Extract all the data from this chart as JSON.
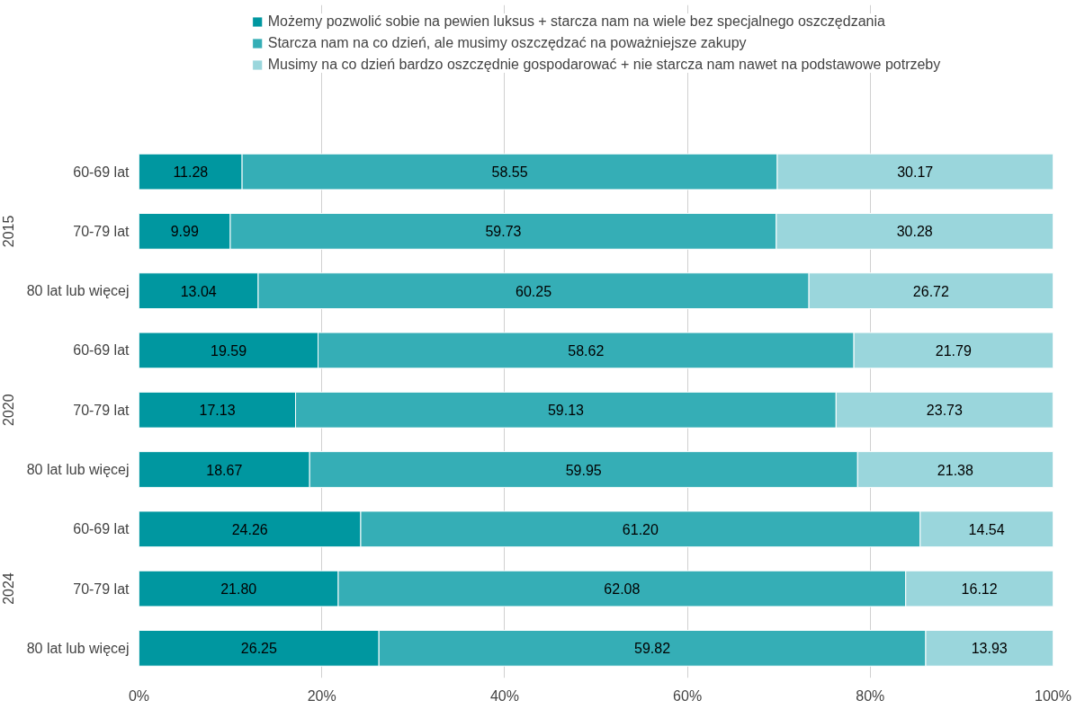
{
  "chart_data": {
    "type": "bar",
    "orientation": "horizontal",
    "stacked": true,
    "categories": [
      "60-69 lat",
      "70-79 lat",
      "80 lat lub więcej",
      "60-69 lat",
      "70-79 lat",
      "80 lat lub więcej",
      "60-69 lat",
      "70-79 lat",
      "80 lat lub więcej"
    ],
    "annotations": [
      "2015",
      "2020",
      "2024"
    ],
    "series": [
      {
        "name": "Możemy pozwolić sobie na pewien luksus + starcza nam na wiele bez specjalnego oszczędzania",
        "color": "#0097a0",
        "values": [
          11.28,
          9.99,
          13.04,
          19.59,
          17.13,
          18.67,
          24.26,
          21.8,
          26.25
        ],
        "value_labels": [
          "11.28",
          "9.99",
          "13.04",
          "19.59",
          "17.13",
          "18.67",
          "24.26",
          "21.80",
          "26.25"
        ]
      },
      {
        "name": "Starcza nam na co dzień, ale musimy oszczędzać na poważniejsze zakupy",
        "color": "#35aeb6",
        "values": [
          58.55,
          59.73,
          60.25,
          58.62,
          59.13,
          59.95,
          61.2,
          62.08,
          59.82
        ],
        "value_labels": [
          "58.55",
          "59.73",
          "60.25",
          "58.62",
          "59.13",
          "59.95",
          "61.20",
          "62.08",
          "59.82"
        ]
      },
      {
        "name": "Musimy na co dzień bardzo oszczędnie gospodarować + nie starcza nam nawet na podstawowe potrzeby",
        "color": "#9ad6dc",
        "values": [
          30.17,
          30.28,
          26.72,
          21.79,
          23.73,
          21.38,
          14.54,
          16.12,
          13.93
        ],
        "value_labels": [
          "30.17",
          "30.28",
          "26.72",
          "21.79",
          "23.73",
          "21.38",
          "14.54",
          "16.12",
          "13.93"
        ]
      }
    ],
    "xlim": [
      0,
      100
    ],
    "xticks": [
      {
        "value": 0,
        "label": "0%"
      },
      {
        "value": 20,
        "label": "20%"
      },
      {
        "value": 40,
        "label": "40%"
      },
      {
        "value": 60,
        "label": "60%"
      },
      {
        "value": 80,
        "label": "80%"
      },
      {
        "value": 100,
        "label": "100%"
      }
    ],
    "grid": "x",
    "legend": "top"
  }
}
